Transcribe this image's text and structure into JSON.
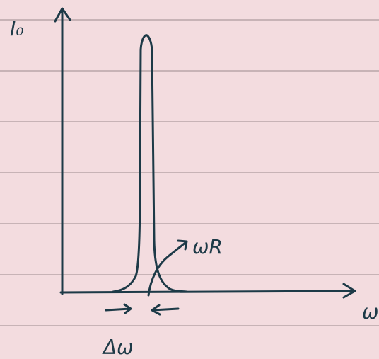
{
  "labels": {
    "y_axis": "I₀",
    "x_axis": "ω",
    "resonance": "ωR",
    "width": "Δω"
  }
}
